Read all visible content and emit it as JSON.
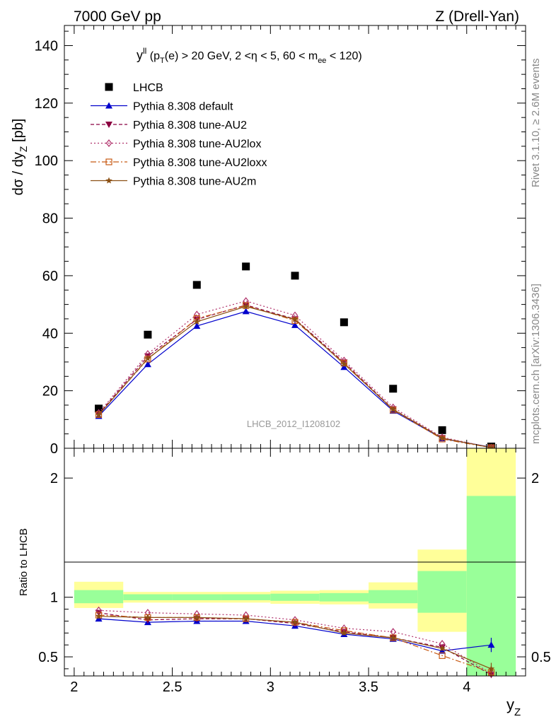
{
  "header": {
    "left": "7000 GeV pp",
    "right": "Z (Drell-Yan)"
  },
  "side_labels": {
    "rivet": "Rivet 3.1.10, ≥ 2.6M events",
    "mcplots": "mcplots.cern.ch [arXiv:1306.3436]"
  },
  "chart_data": [
    {
      "type": "scatter",
      "title_parts": {
        "y": "y",
        "ll": "ll",
        "a": " (p",
        "T": "T",
        "b": "(e) > 20 GeV, 2 <η < 5, 60 < m",
        "ee": "ee",
        "c": " < 120)"
      },
      "ylabel_parts": {
        "main": "dσ / dy",
        "sub": "Z",
        "unit": " [pb]"
      },
      "watermark": "LHCB_2012_I1208102",
      "xlim": [
        1.95,
        4.3
      ],
      "ylim": [
        0,
        147
      ],
      "yticks": [
        0,
        20,
        40,
        60,
        80,
        100,
        120,
        140
      ],
      "yticklabels": [
        "0",
        "20",
        "40",
        "60",
        "80",
        "100",
        "120",
        "140"
      ],
      "x": [
        2.125,
        2.375,
        2.625,
        2.875,
        3.125,
        3.375,
        3.625,
        3.875,
        4.125
      ],
      "series": [
        {
          "name": "LHCB",
          "key": "data",
          "color": "#000000",
          "values": [
            13.8,
            39.5,
            56.8,
            63.2,
            60.0,
            43.8,
            20.7,
            6.3,
            0.6
          ]
        },
        {
          "name": "Pythia 8.308 default",
          "key": "default",
          "color": "#0000cc",
          "values": [
            11.2,
            29.2,
            42.5,
            47.6,
            42.8,
            28.2,
            13.0,
            3.4,
            0.37
          ]
        },
        {
          "name": "Pythia 8.308 tune-AU2",
          "key": "au2",
          "color": "#8b0040",
          "values": [
            11.9,
            32.0,
            44.8,
            49.8,
            44.9,
            29.9,
            13.6,
            3.6,
            0.23
          ]
        },
        {
          "name": "Pythia 8.308 tune-AU2lox",
          "key": "au2lox",
          "color": "#b0306a",
          "values": [
            12.3,
            32.8,
            46.5,
            51.2,
            46.2,
            30.5,
            14.2,
            3.8,
            0.22
          ]
        },
        {
          "name": "Pythia 8.308 tune-AU2loxx",
          "key": "au2loxx",
          "color": "#c85a14",
          "values": [
            11.7,
            31.0,
            45.1,
            49.6,
            44.4,
            29.6,
            13.3,
            3.2,
            0.22
          ]
        },
        {
          "name": "Pythia 8.308 tune-AU2m",
          "key": "au2m",
          "color": "#8b5014",
          "values": [
            11.6,
            31.2,
            44.0,
            49.3,
            44.8,
            29.3,
            13.5,
            3.5,
            0.25
          ]
        }
      ],
      "legend_position": "top-left"
    },
    {
      "type": "scatter",
      "ylabel": "Ratio to LHCB",
      "xlabel_parts": {
        "main": "y",
        "sub": "Z"
      },
      "xlim": [
        1.95,
        4.3
      ],
      "ylim": [
        0.34,
        2.25
      ],
      "xticks": [
        2,
        2.5,
        3,
        3.5,
        4
      ],
      "xticklabels": [
        "2",
        "2.5",
        "3",
        "3.5",
        "4"
      ],
      "yticks": [
        0.5,
        1,
        2
      ],
      "yticklabels": [
        "0.5",
        "1",
        "2"
      ],
      "bands": [
        {
          "x0": 2.0,
          "x1": 2.25,
          "inner": [
            0.95,
            1.06
          ],
          "outer": [
            0.91,
            1.13
          ]
        },
        {
          "x0": 2.25,
          "x1": 2.5,
          "inner": [
            0.975,
            1.025
          ],
          "outer": [
            0.955,
            1.045
          ]
        },
        {
          "x0": 2.5,
          "x1": 2.75,
          "inner": [
            0.975,
            1.025
          ],
          "outer": [
            0.955,
            1.045
          ]
        },
        {
          "x0": 2.75,
          "x1": 3.0,
          "inner": [
            0.975,
            1.025
          ],
          "outer": [
            0.955,
            1.045
          ]
        },
        {
          "x0": 3.0,
          "x1": 3.25,
          "inner": [
            0.97,
            1.03
          ],
          "outer": [
            0.945,
            1.055
          ]
        },
        {
          "x0": 3.25,
          "x1": 3.5,
          "inner": [
            0.965,
            1.035
          ],
          "outer": [
            0.94,
            1.06
          ]
        },
        {
          "x0": 3.5,
          "x1": 3.75,
          "inner": [
            0.95,
            1.06
          ],
          "outer": [
            0.905,
            1.125
          ]
        },
        {
          "x0": 3.75,
          "x1": 4.0,
          "inner": [
            0.87,
            1.22
          ],
          "outer": [
            0.71,
            1.4
          ]
        },
        {
          "x0": 4.0,
          "x1": 4.25,
          "inner": [
            0.34,
            1.85
          ],
          "outer": [
            0.34,
            2.25
          ]
        }
      ],
      "x": [
        2.125,
        2.375,
        2.625,
        2.875,
        3.125,
        3.375,
        3.625,
        3.875,
        4.125
      ],
      "series": [
        {
          "name": "Pythia 8.308 default",
          "key": "default",
          "color": "#0000cc",
          "values": [
            0.82,
            0.79,
            0.8,
            0.8,
            0.76,
            0.69,
            0.65,
            0.55,
            0.6
          ],
          "error_last": 0.06
        },
        {
          "name": "Pythia 8.308 tune-AU2",
          "key": "au2",
          "color": "#8b0040",
          "values": [
            0.87,
            0.81,
            0.82,
            0.82,
            0.78,
            0.71,
            0.66,
            0.58,
            0.35
          ],
          "error_last": 0.05
        },
        {
          "name": "Pythia 8.308 tune-AU2lox",
          "key": "au2lox",
          "color": "#b0306a",
          "values": [
            0.89,
            0.87,
            0.86,
            0.85,
            0.81,
            0.74,
            0.71,
            0.61,
            0.36
          ],
          "error_last": 0.05
        },
        {
          "name": "Pythia 8.308 tune-AU2loxx",
          "key": "au2loxx",
          "color": "#c85a14",
          "values": [
            0.85,
            0.83,
            0.83,
            0.82,
            0.79,
            0.72,
            0.66,
            0.51,
            0.37
          ],
          "error_last": 0.05
        },
        {
          "name": "Pythia 8.308 tune-AU2m",
          "key": "au2m",
          "color": "#8b5014",
          "values": [
            0.84,
            0.83,
            0.83,
            0.82,
            0.79,
            0.7,
            0.66,
            0.57,
            0.4
          ],
          "error_last": 0.05
        }
      ]
    }
  ]
}
